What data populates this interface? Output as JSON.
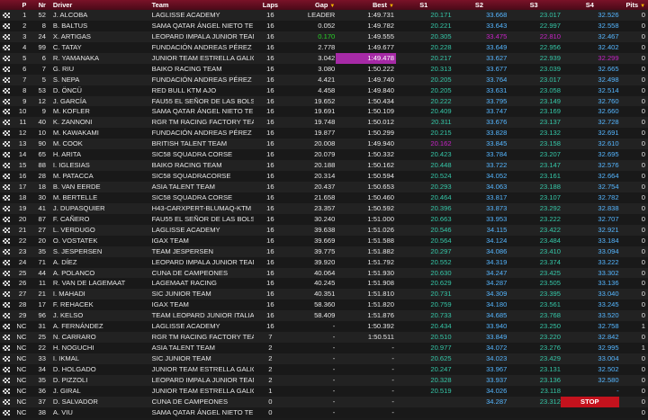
{
  "headers": {
    "p": "P",
    "nr": "Nr",
    "driver": "Driver",
    "team": "Team",
    "laps": "Laps",
    "gap": "Gap",
    "best": "Best",
    "s1": "S1",
    "s2": "S2",
    "s3": "S3",
    "s4": "S4",
    "pits": "Pits"
  },
  "rows": [
    {
      "p": "1",
      "nr": "52",
      "driver": "J. ALCOBA",
      "team": "LAGLISSE ACADEMY",
      "laps": "16",
      "gap": "LEADER",
      "best": "1:49.731",
      "s1": "20.171",
      "s2": "33.668",
      "s3": "23.017",
      "s4": "32.526",
      "pits": "0"
    },
    {
      "p": "2",
      "nr": "8",
      "driver": "B. BALTUS",
      "team": "SAMA QATAR ÁNGEL NIETO TE...",
      "laps": "16",
      "gap": "0.052",
      "best": "1:49.782",
      "s1": "20.221",
      "s2": "33.643",
      "s3": "22.997",
      "s4": "32.558",
      "pits": "0"
    },
    {
      "p": "3",
      "nr": "24",
      "driver": "X. ARTIGAS",
      "team": "LEOPARD IMPALA JUNIOR TEAM",
      "laps": "16",
      "gap": "0.170",
      "best": "1:49.555",
      "s1": "20.305",
      "s2": "33.475",
      "s3": "22.810",
      "s4": "32.467",
      "pits": "0"
    },
    {
      "p": "4",
      "nr": "99",
      "driver": "C. TATAY",
      "team": "FUNDACIÓN ANDREAS PÉREZ ...",
      "laps": "16",
      "gap": "2.778",
      "best": "1:49.677",
      "s1": "20.228",
      "s2": "33.649",
      "s3": "22.956",
      "s4": "32.402",
      "pits": "0"
    },
    {
      "p": "5",
      "nr": "6",
      "driver": "R. YAMANAKA",
      "team": "JUNIOR TEAM ESTRELLA GALIC...",
      "laps": "16",
      "gap": "3.042",
      "best": "1:49.478",
      "s1": "20.217",
      "s2": "33.627",
      "s3": "22.939",
      "s4": "32.299",
      "pits": "0"
    },
    {
      "p": "6",
      "nr": "7",
      "driver": "G. RIU",
      "team": "BAIKO RACING TEAM",
      "laps": "16",
      "gap": "3.080",
      "best": "1:50.222",
      "s1": "20.313",
      "s2": "33.677",
      "s3": "23.039",
      "s4": "32.665",
      "pits": "0"
    },
    {
      "p": "7",
      "nr": "5",
      "driver": "S. NEPA",
      "team": "FUNDACIÓN ANDREAS PÉREZ ...",
      "laps": "16",
      "gap": "4.421",
      "best": "1:49.740",
      "s1": "20.205",
      "s2": "33.764",
      "s3": "23.017",
      "s4": "32.498",
      "pits": "0"
    },
    {
      "p": "8",
      "nr": "53",
      "driver": "D. ÖNCÜ",
      "team": "RED BULL KTM AJO",
      "laps": "16",
      "gap": "4.458",
      "best": "1:49.840",
      "s1": "20.205",
      "s2": "33.631",
      "s3": "23.058",
      "s4": "32.514",
      "pits": "0"
    },
    {
      "p": "9",
      "nr": "12",
      "driver": "J. GARCÍA",
      "team": "FAU55 EL SEÑOR DE LAS BOLS...",
      "laps": "16",
      "gap": "19.652",
      "best": "1:50.434",
      "s1": "20.222",
      "s2": "33.795",
      "s3": "23.149",
      "s4": "32.760",
      "pits": "0"
    },
    {
      "p": "10",
      "nr": "9",
      "driver": "M. KOFLER",
      "team": "SAMA QATAR ÁNGEL NIETO TE...",
      "laps": "16",
      "gap": "19.691",
      "best": "1:50.109",
      "s1": "20.409",
      "s2": "33.747",
      "s3": "23.169",
      "s4": "32.660",
      "pits": "0"
    },
    {
      "p": "11",
      "nr": "40",
      "driver": "K. ZANNONI",
      "team": "RGR TM RACING FACTORY TEAM",
      "laps": "16",
      "gap": "19.748",
      "best": "1:50.012",
      "s1": "20.311",
      "s2": "33.676",
      "s3": "23.137",
      "s4": "32.728",
      "pits": "0"
    },
    {
      "p": "12",
      "nr": "10",
      "driver": "M. KAWAKAMI",
      "team": "FUNDACIÓN ANDREAS PÉREZ ...",
      "laps": "16",
      "gap": "19.877",
      "best": "1:50.299",
      "s1": "20.215",
      "s2": "33.828",
      "s3": "23.132",
      "s4": "32.691",
      "pits": "0"
    },
    {
      "p": "13",
      "nr": "90",
      "driver": "M. COOK",
      "team": "BRITISH TALENT TEAM",
      "laps": "16",
      "gap": "20.008",
      "best": "1:49.940",
      "s1": "20.162",
      "s2": "33.845",
      "s3": "23.158",
      "s4": "32.610",
      "pits": "0"
    },
    {
      "p": "14",
      "nr": "65",
      "driver": "H. ARITA",
      "team": "SIC58 SQUADRA CORSE",
      "laps": "16",
      "gap": "20.079",
      "best": "1:50.332",
      "s1": "20.423",
      "s2": "33.784",
      "s3": "23.207",
      "s4": "32.695",
      "pits": "0"
    },
    {
      "p": "15",
      "nr": "88",
      "driver": "I. IGLESIAS",
      "team": "BAIKO RACING TEAM",
      "laps": "16",
      "gap": "20.188",
      "best": "1:50.162",
      "s1": "20.448",
      "s2": "33.722",
      "s3": "23.147",
      "s4": "32.576",
      "pits": "0"
    },
    {
      "p": "16",
      "nr": "28",
      "driver": "M. PATACCA",
      "team": "SIC58 SQUADRACORSE",
      "laps": "16",
      "gap": "20.314",
      "best": "1:50.594",
      "s1": "20.524",
      "s2": "34.052",
      "s3": "23.161",
      "s4": "32.664",
      "pits": "0"
    },
    {
      "p": "17",
      "nr": "18",
      "driver": "B. VAN EERDE",
      "team": "ASIA TALENT TEAM",
      "laps": "16",
      "gap": "20.437",
      "best": "1:50.653",
      "s1": "20.293",
      "s2": "34.063",
      "s3": "23.188",
      "s4": "32.754",
      "pits": "0"
    },
    {
      "p": "18",
      "nr": "30",
      "driver": "M. BERTELLE",
      "team": "SIC58 SQUADRA CORSE",
      "laps": "16",
      "gap": "21.658",
      "best": "1:50.460",
      "s1": "20.464",
      "s2": "33.817",
      "s3": "23.107",
      "s4": "32.782",
      "pits": "0"
    },
    {
      "p": "19",
      "nr": "41",
      "driver": "J. DUPASQUIER",
      "team": "H43-CARXPERT-BLUMAQ-KTM",
      "laps": "16",
      "gap": "23.357",
      "best": "1:50.592",
      "s1": "20.396",
      "s2": "33.873",
      "s3": "23.292",
      "s4": "32.838",
      "pits": "0"
    },
    {
      "p": "20",
      "nr": "87",
      "driver": "F. CAÑERO",
      "team": "FAU55 EL SEÑOR DE LAS BOLS...",
      "laps": "16",
      "gap": "30.240",
      "best": "1:51.000",
      "s1": "20.663",
      "s2": "33.953",
      "s3": "23.222",
      "s4": "32.707",
      "pits": "0"
    },
    {
      "p": "21",
      "nr": "27",
      "driver": "L. VERDUGO",
      "team": "LAGLISSE ACADEMY",
      "laps": "16",
      "gap": "39.638",
      "best": "1:51.026",
      "s1": "20.546",
      "s2": "34.115",
      "s3": "23.422",
      "s4": "32.921",
      "pits": "0"
    },
    {
      "p": "22",
      "nr": "20",
      "driver": "O. VOSTATEK",
      "team": "IGAX TEAM",
      "laps": "16",
      "gap": "39.669",
      "best": "1:51.588",
      "s1": "20.564",
      "s2": "34.124",
      "s3": "23.484",
      "s4": "33.184",
      "pits": "0"
    },
    {
      "p": "23",
      "nr": "35",
      "driver": "S. JESPERSEN",
      "team": "TEAM JESPERSEN",
      "laps": "16",
      "gap": "39.775",
      "best": "1:51.882",
      "s1": "20.297",
      "s2": "34.086",
      "s3": "23.410",
      "s4": "33.094",
      "pits": "0"
    },
    {
      "p": "24",
      "nr": "71",
      "driver": "A. DÍEZ",
      "team": "LEOPARD IMPALA JUNIOR TEAM",
      "laps": "16",
      "gap": "39.920",
      "best": "1:51.792",
      "s1": "20.552",
      "s2": "34.319",
      "s3": "23.374",
      "s4": "33.222",
      "pits": "0"
    },
    {
      "p": "25",
      "nr": "44",
      "driver": "A. POLANCO",
      "team": "CUNA DE CAMPEONES",
      "laps": "16",
      "gap": "40.064",
      "best": "1:51.930",
      "s1": "20.630",
      "s2": "34.247",
      "s3": "23.425",
      "s4": "33.302",
      "pits": "0"
    },
    {
      "p": "26",
      "nr": "11",
      "driver": "R. VAN DE LAGEMAAT",
      "team": "LAGEMAAT RACING",
      "laps": "16",
      "gap": "40.245",
      "best": "1:51.908",
      "s1": "20.629",
      "s2": "34.287",
      "s3": "23.505",
      "s4": "33.136",
      "pits": "0"
    },
    {
      "p": "27",
      "nr": "21",
      "driver": "I. MAHADI",
      "team": "SIC JUNIOR TEAM",
      "laps": "16",
      "gap": "40.351",
      "best": "1:51.810",
      "s1": "20.731",
      "s2": "34.309",
      "s3": "23.395",
      "s4": "33.040",
      "pits": "0"
    },
    {
      "p": "28",
      "nr": "17",
      "driver": "F. REHACEK",
      "team": "IGAX TEAM",
      "laps": "16",
      "gap": "58.360",
      "best": "1:51.820",
      "s1": "20.759",
      "s2": "34.180",
      "s3": "23.561",
      "s4": "33.245",
      "pits": "0"
    },
    {
      "p": "29",
      "nr": "96",
      "driver": "J. KELSO",
      "team": "TEAM LEOPARD JUNIOR ITALIA",
      "laps": "16",
      "gap": "58.409",
      "best": "1:51.876",
      "s1": "20.733",
      "s2": "34.685",
      "s3": "23.768",
      "s4": "33.520",
      "pits": "0"
    },
    {
      "p": "NC",
      "nr": "31",
      "driver": "A. FERNÁNDEZ",
      "team": "LAGLISSE ACADEMY",
      "laps": "16",
      "gap": "-",
      "best": "1:50.392",
      "s1": "20.434",
      "s2": "33.940",
      "s3": "23.250",
      "s4": "32.758",
      "pits": "1"
    },
    {
      "p": "NC",
      "nr": "25",
      "driver": "N. CARRARO",
      "team": "RGR TM RACING FACTORY TEAM",
      "laps": "7",
      "gap": "-",
      "best": "1:50.511",
      "s1": "20.510",
      "s2": "33.849",
      "s3": "23.220",
      "s4": "32.842",
      "pits": "0"
    },
    {
      "p": "NC",
      "nr": "22",
      "driver": "H. NOGUCHI",
      "team": "ASIA TALENT TEAM",
      "laps": "2",
      "gap": "-",
      "best": "-",
      "s1": "20.977",
      "s2": "34.072",
      "s3": "23.276",
      "s4": "32.995",
      "pits": "1"
    },
    {
      "p": "NC",
      "nr": "33",
      "driver": "I. IKMAL",
      "team": "SIC JUNIOR TEAM",
      "laps": "2",
      "gap": "-",
      "best": "-",
      "s1": "20.625",
      "s2": "34.023",
      "s3": "23.429",
      "s4": "33.004",
      "pits": "0"
    },
    {
      "p": "NC",
      "nr": "34",
      "driver": "D. HOLGADO",
      "team": "JUNIOR TEAM ESTRELLA GALIC...",
      "laps": "2",
      "gap": "-",
      "best": "-",
      "s1": "20.247",
      "s2": "33.967",
      "s3": "23.131",
      "s4": "32.502",
      "pits": "0"
    },
    {
      "p": "NC",
      "nr": "35",
      "driver": "D. PIZZOLI",
      "team": "LEOPARD IMPALA JUNIOR TEAM",
      "laps": "2",
      "gap": "-",
      "best": "-",
      "s1": "20.328",
      "s2": "33.937",
      "s3": "23.136",
      "s4": "32.580",
      "pits": "0"
    },
    {
      "p": "NC",
      "nr": "36",
      "driver": "J. GIRAL",
      "team": "JUNIOR TEAM ESTRELLA GALIC...",
      "laps": "1",
      "gap": "-",
      "best": "-",
      "s1": "20.519",
      "s2": "34.026",
      "s3": "23.118",
      "s4": "-",
      "pits": "0"
    },
    {
      "p": "NC",
      "nr": "37",
      "driver": "D. SALVADOR",
      "team": "CUNA DE CAMPEONES",
      "laps": "0",
      "gap": "-",
      "best": "-",
      "s1": "",
      "s2": "34.287",
      "s3": "23.312",
      "s4": "STOP",
      "pits": "0"
    },
    {
      "p": "NC",
      "nr": "38",
      "driver": "A. VIU",
      "team": "SAMA QATAR ÁNGEL NIETO TE...",
      "laps": "0",
      "gap": "-",
      "best": "-",
      "s1": "",
      "s2": "",
      "s3": "",
      "s4": "",
      "pits": "0"
    }
  ],
  "colors": {
    "header_bg": "#7a1228",
    "sector_teal": "#35c7a8",
    "sector_blue": "#55b6ff",
    "personal_best_green": "#27d627",
    "overall_best_purple": "#c623c6",
    "stop_red": "#c4121d"
  }
}
